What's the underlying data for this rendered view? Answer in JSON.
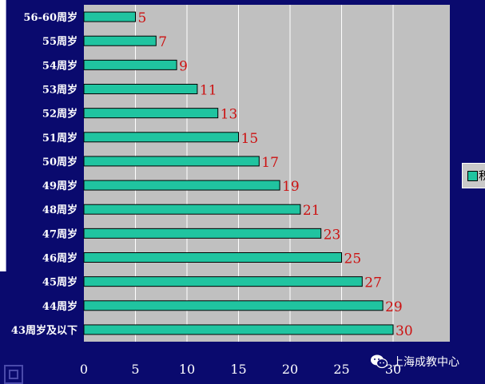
{
  "chart_data": {
    "type": "bar",
    "orientation": "horizontal",
    "categories": [
      "56-60周岁",
      "55周岁",
      "54周岁",
      "53周岁",
      "52周岁",
      "51周岁",
      "50周岁",
      "49周岁",
      "48周岁",
      "47周岁",
      "46周岁",
      "45周岁",
      "44周岁",
      "43周岁及以下"
    ],
    "values": [
      5,
      7,
      9,
      11,
      13,
      15,
      17,
      19,
      21,
      23,
      25,
      27,
      29,
      30
    ],
    "xlim": [
      0,
      35
    ],
    "xticks": [
      0,
      5,
      10,
      15,
      20,
      25,
      30
    ],
    "grid": true,
    "legend": {
      "placement": "right",
      "entries": [
        "积"
      ]
    },
    "colors": {
      "bar": "#20c4a0",
      "plot_bg": "#c0c0c0",
      "value_label": "#cc1111",
      "background": "#0a0a6e"
    }
  },
  "watermark": {
    "text": "上海成教中心",
    "icon": "wechat-icon"
  }
}
